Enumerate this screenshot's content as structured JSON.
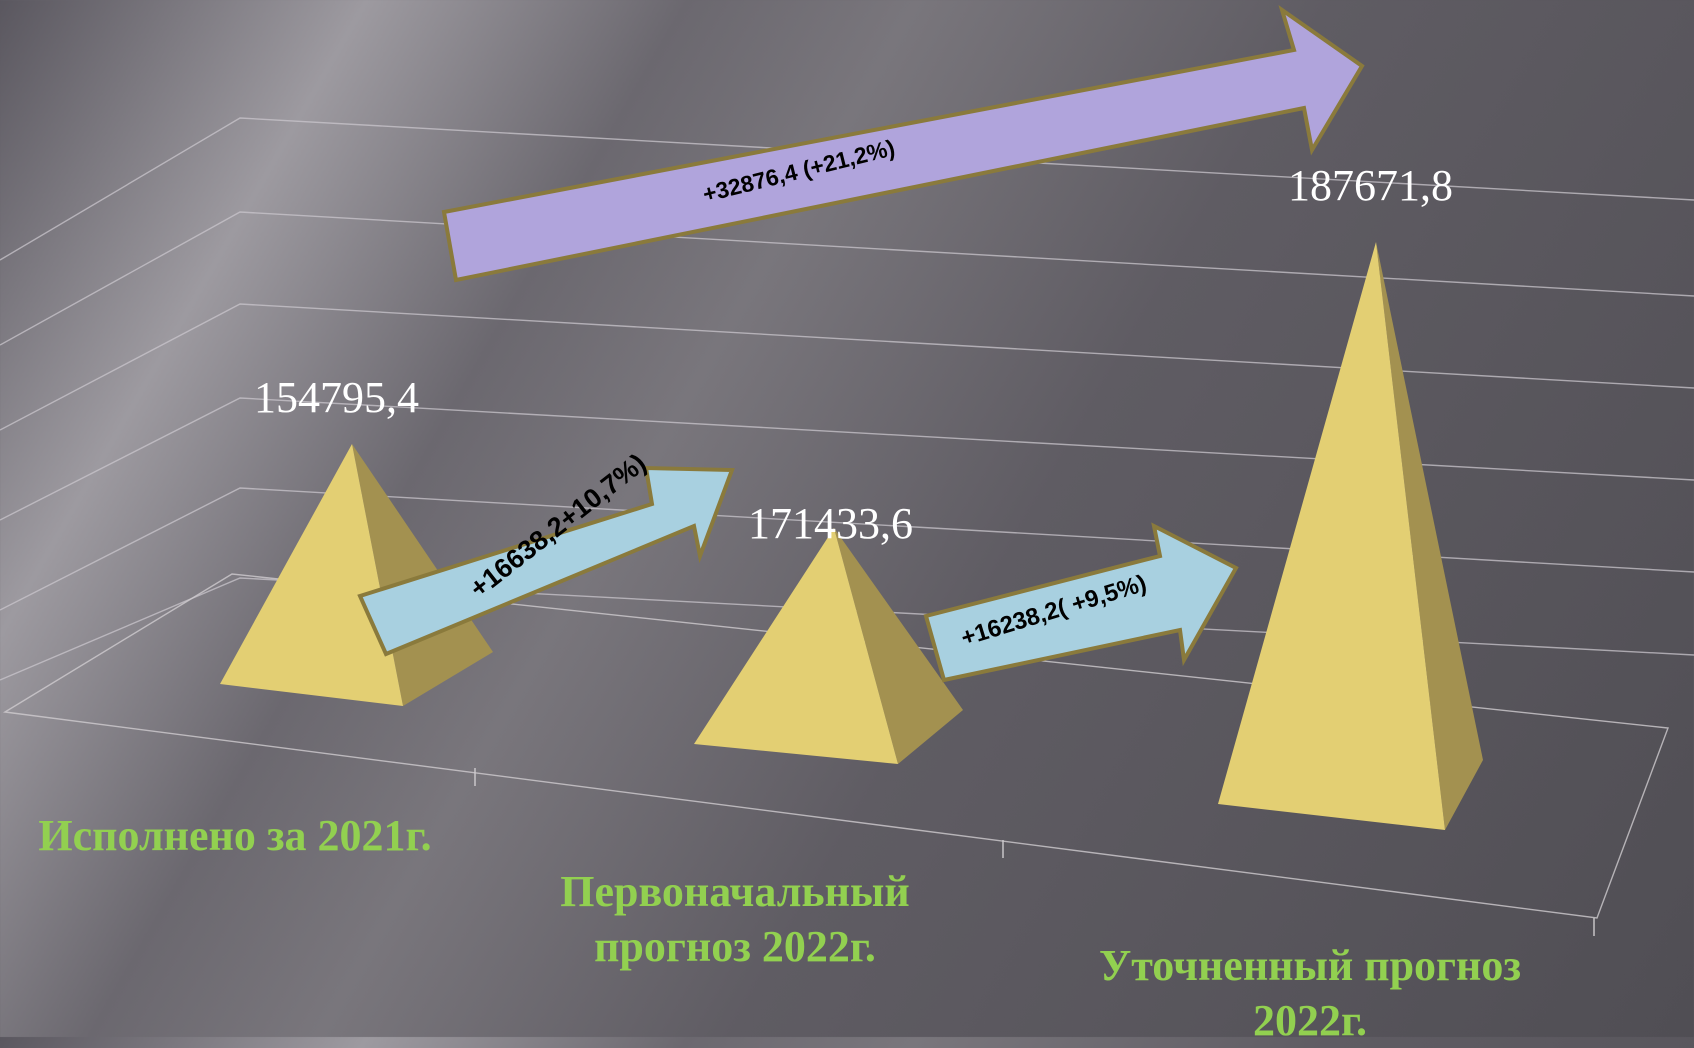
{
  "title": "",
  "chart_data": {
    "type": "bar",
    "style": "3d-pyramid",
    "categories": [
      "Исполнено за 2021г.",
      "Первоначальный прогноз 2022г.",
      "Уточненный прогноз 2022г."
    ],
    "values": [
      154795.4,
      171433.6,
      187671.8
    ],
    "value_labels": [
      "154795,4",
      "171433,6",
      "187671,8"
    ],
    "grid": true,
    "annotations": [
      {
        "from": 0,
        "to": 1,
        "label": "+16638,2+10,7%)"
      },
      {
        "from": 1,
        "to": 2,
        "label": "+16238,2( +9,5%)"
      },
      {
        "from": 0,
        "to": 2,
        "label": "+32876,4 (+21,2%)"
      }
    ]
  },
  "colors": {
    "pyramid_front": "#e3cf73",
    "pyramid_side": "#a39150",
    "category_label": "#92d050",
    "arrow_small": "#a8d0e0",
    "arrow_big": "#b0a4dc",
    "arrow_border": "#8a7a3c"
  }
}
